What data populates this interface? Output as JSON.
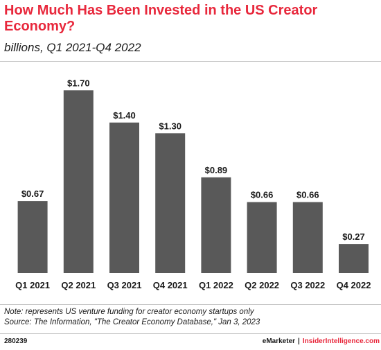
{
  "header": {
    "title": "How Much Has Been Invested in the US Creator Economy?",
    "subtitle": "billions, Q1 2021-Q4 2022"
  },
  "colors": {
    "accent": "#e8283c",
    "bar": "#595959",
    "text": "#1a1a1a",
    "rule": "#bfbfbf"
  },
  "chart_data": {
    "type": "bar",
    "title": "How Much Has Been Invested in the US Creator Economy?",
    "subtitle": "billions, Q1 2021-Q4 2022",
    "categories": [
      "Q1 2021",
      "Q2 2021",
      "Q3 2021",
      "Q4 2021",
      "Q1 2022",
      "Q2 2022",
      "Q3 2022",
      "Q4 2022"
    ],
    "values": [
      0.67,
      1.7,
      1.4,
      1.3,
      0.89,
      0.66,
      0.66,
      0.27
    ],
    "value_labels": [
      "$0.67",
      "$1.70",
      "$1.40",
      "$1.30",
      "$0.89",
      "$0.66",
      "$0.66",
      "$0.27"
    ],
    "xlabel": "",
    "ylabel": "",
    "ylim": [
      0,
      1.85
    ],
    "grid": false,
    "legend": "none"
  },
  "footer": {
    "note": "Note: represents US venture funding for creator economy startups only",
    "source": "Source: The Information, \"The Creator Economy Database,\" Jan 3, 2023",
    "chart_id": "280239",
    "brand": "eMarketer",
    "separator": "|",
    "site": "InsiderIntelligence.com"
  }
}
